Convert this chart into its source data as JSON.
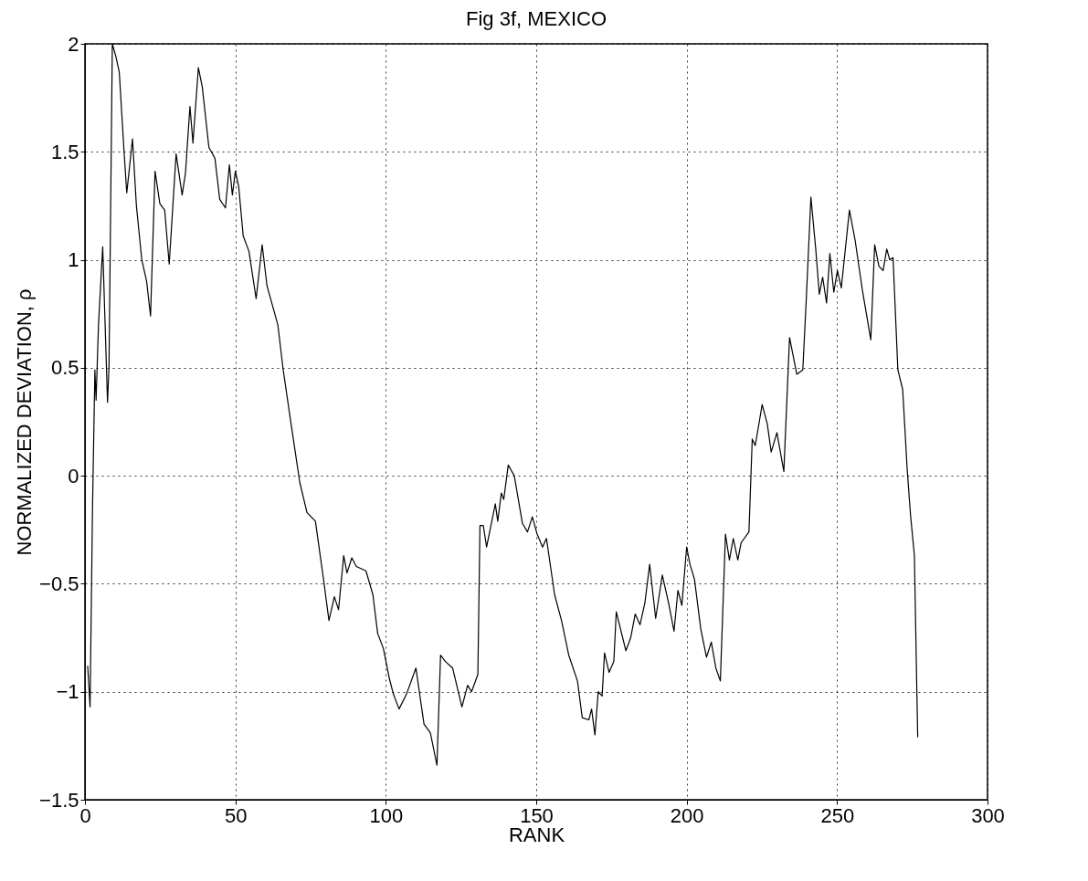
{
  "chart_data": {
    "type": "line",
    "title": "Fig 3f, MEXICO",
    "xlabel": "RANK",
    "ylabel": "NORMALIZED DEVIATION, ρ",
    "x": [
      0.9,
      1.7,
      2.5,
      3.3,
      3.7,
      4.5,
      5.9,
      6.7,
      7.5,
      8,
      9.1,
      10.3,
      11.4,
      13,
      13.9,
      15.8,
      17.1,
      18.9,
      20.5,
      21.8,
      23.3,
      24.9,
      26.5,
      28,
      30.3,
      32.3,
      33.4,
      34.9,
      35.9,
      37.7,
      39,
      41.2,
      43.2,
      44.8,
      46.7,
      48,
      49,
      50,
      51.1,
      52.6,
      54.5,
      56.9,
      58.9,
      60.5,
      64.1,
      65.9,
      68.3,
      71.4,
      73.8,
      76.6,
      79.3,
      81.1,
      82.9,
      84.3,
      86,
      87.1,
      88.7,
      90.2,
      93.4,
      95.7,
      97.3,
      99.2,
      101.2,
      102.5,
      104.4,
      106.9,
      110,
      112.7,
      114.8,
      117,
      118.2,
      119.8,
      122.2,
      125.3,
      127.2,
      128.5,
      130.6,
      131.3,
      132.4,
      133.5,
      136.4,
      137.2,
      138.4,
      139.2,
      140.7,
      142.7,
      145.4,
      147.1,
      148.7,
      150.3,
      152.1,
      153.4,
      156.1,
      158.4,
      160.8,
      163.7,
      165.3,
      167.5,
      168.4,
      169.5,
      170.6,
      171.9,
      172.7,
      174.2,
      175.8,
      176.6,
      179.8,
      181.4,
      182.9,
      184.5,
      186.1,
      187.7,
      189.7,
      191.9,
      194,
      195.8,
      197.1,
      198.4,
      200,
      201.1,
      202.6,
      204.7,
      206.6,
      208.2,
      209.7,
      211.2,
      211.8,
      212.9,
      214.2,
      215.5,
      217,
      218.1,
      220.7,
      221.8,
      222.8,
      225.1,
      226.8,
      228.1,
      230,
      232.3,
      234.2,
      236.6,
      238.6,
      239.7,
      241.3,
      242.9,
      244.1,
      245.2,
      246.5,
      247.6,
      248.9,
      250.1,
      251.4,
      254.1,
      256,
      258.4,
      261.2,
      262.5,
      263.9,
      265.3,
      266.5,
      267.5,
      268.6,
      270.2,
      271.8,
      273.3,
      274.4,
      275.7,
      276.5,
      276.8
    ],
    "values": [
      -0.88,
      -1.07,
      -0.16,
      0.49,
      0.35,
      0.7,
      1.06,
      0.7,
      0.34,
      0.51,
      2.0,
      1.94,
      1.87,
      1.5,
      1.31,
      1.56,
      1.25,
      1.0,
      0.9,
      0.74,
      1.41,
      1.26,
      1.23,
      0.98,
      1.49,
      1.3,
      1.4,
      1.71,
      1.54,
      1.89,
      1.8,
      1.52,
      1.47,
      1.28,
      1.24,
      1.44,
      1.3,
      1.41,
      1.34,
      1.11,
      1.04,
      0.82,
      1.07,
      0.88,
      0.7,
      0.49,
      0.26,
      -0.03,
      -0.17,
      -0.21,
      -0.48,
      -0.67,
      -0.56,
      -0.62,
      -0.37,
      -0.45,
      -0.38,
      -0.42,
      -0.44,
      -0.55,
      -0.73,
      -0.8,
      -0.94,
      -1.01,
      -1.08,
      -1.01,
      -0.89,
      -1.15,
      -1.19,
      -1.34,
      -0.83,
      -0.86,
      -0.89,
      -1.07,
      -0.97,
      -1.0,
      -0.92,
      -0.23,
      -0.23,
      -0.33,
      -0.13,
      -0.21,
      -0.08,
      -0.11,
      0.05,
      0.0,
      -0.22,
      -0.26,
      -0.19,
      -0.27,
      -0.33,
      -0.29,
      -0.55,
      -0.67,
      -0.83,
      -0.95,
      -1.12,
      -1.13,
      -1.08,
      -1.2,
      -1.0,
      -1.02,
      -0.82,
      -0.91,
      -0.86,
      -0.63,
      -0.81,
      -0.75,
      -0.64,
      -0.69,
      -0.59,
      -0.41,
      -0.66,
      -0.46,
      -0.59,
      -0.72,
      -0.53,
      -0.6,
      -0.33,
      -0.41,
      -0.48,
      -0.71,
      -0.84,
      -0.77,
      -0.89,
      -0.95,
      -0.71,
      -0.27,
      -0.39,
      -0.29,
      -0.39,
      -0.31,
      -0.26,
      0.17,
      0.14,
      0.33,
      0.24,
      0.11,
      0.2,
      0.02,
      0.64,
      0.47,
      0.49,
      0.8,
      1.29,
      1.05,
      0.84,
      0.92,
      0.8,
      1.03,
      0.85,
      0.95,
      0.87,
      1.23,
      1.09,
      0.86,
      0.63,
      1.07,
      0.97,
      0.95,
      1.05,
      1.0,
      1.01,
      0.49,
      0.4,
      0.03,
      -0.18,
      -0.37,
      -0.99,
      -1.21
    ],
    "color": "#000000",
    "xlim": [
      0,
      300
    ],
    "xticks": [
      0,
      50,
      100,
      150,
      200,
      250,
      300
    ],
    "ylim": [
      -1.5,
      2
    ],
    "yticks": [
      -1.5,
      -1,
      -0.5,
      0,
      0.5,
      1,
      1.5,
      2
    ],
    "grid": true,
    "line_style": "solid",
    "marker": "none"
  }
}
